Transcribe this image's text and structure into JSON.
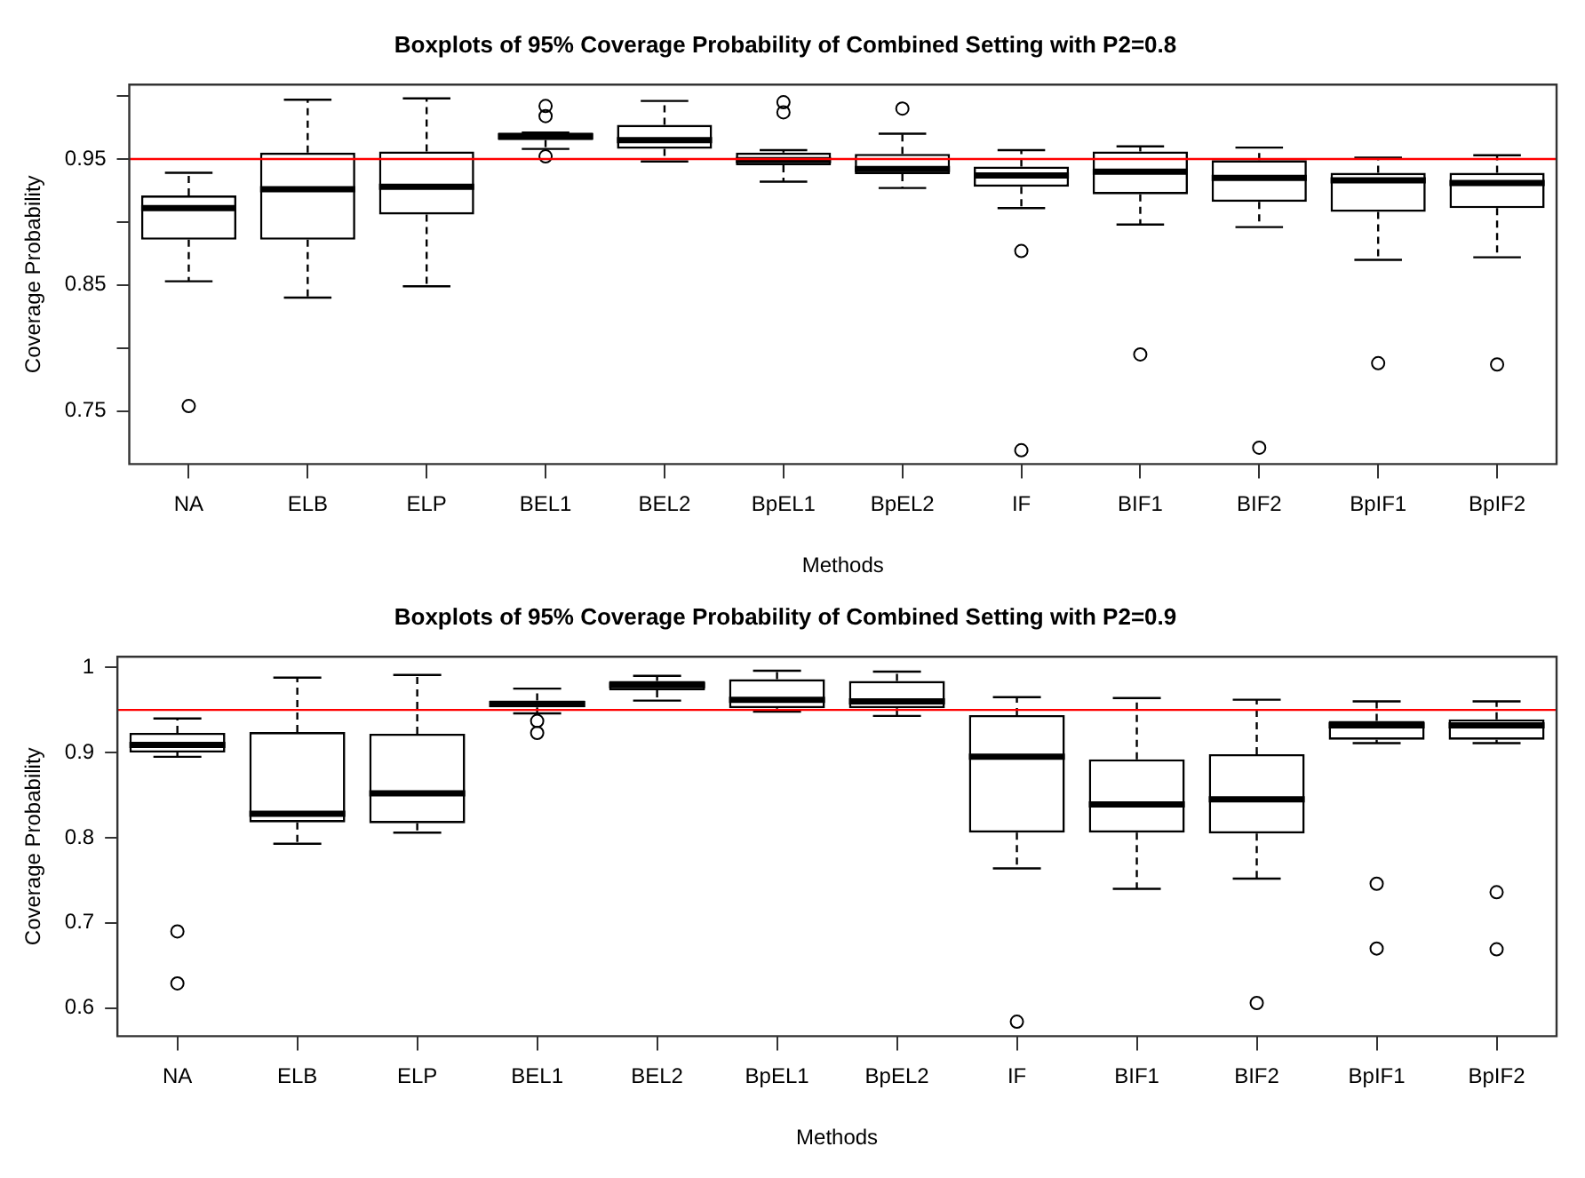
{
  "chart_data": [
    {
      "type": "box",
      "title": "Boxplots of 95% Coverage Probability of Combined Setting with P2=0.8",
      "xlabel": "Methods",
      "ylabel": "Coverage Probability",
      "categories": [
        "NA",
        "ELB",
        "ELP",
        "BEL1",
        "BEL2",
        "BpEL1",
        "BpEL2",
        "IF",
        "BIF1",
        "BIF2",
        "BpIF1",
        "BpIF2"
      ],
      "boxes": [
        {
          "low": 0.853,
          "q1": 0.886,
          "median": 0.911,
          "q3": 0.921,
          "high": 0.939,
          "outliers": [
            0.754
          ]
        },
        {
          "low": 0.84,
          "q1": 0.886,
          "median": 0.926,
          "q3": 0.955,
          "high": 0.997
        },
        {
          "low": 0.849,
          "q1": 0.906,
          "median": 0.928,
          "q3": 0.956,
          "high": 0.998
        },
        {
          "low": 0.958,
          "q1": 0.965,
          "median": 0.968,
          "q3": 0.971,
          "high": 0.971,
          "outliers": [
            0.992,
            0.984,
            0.952
          ]
        },
        {
          "low": 0.948,
          "q1": 0.958,
          "median": 0.965,
          "q3": 0.977,
          "high": 0.996
        },
        {
          "low": 0.932,
          "q1": 0.945,
          "median": 0.949,
          "q3": 0.955,
          "high": 0.957,
          "outliers": [
            0.995,
            0.987
          ]
        },
        {
          "low": 0.927,
          "q1": 0.938,
          "median": 0.942,
          "q3": 0.954,
          "high": 0.97,
          "outliers": [
            0.99
          ]
        },
        {
          "low": 0.911,
          "q1": 0.928,
          "median": 0.937,
          "q3": 0.944,
          "high": 0.957,
          "outliers": [
            0.877,
            0.719
          ]
        },
        {
          "low": 0.898,
          "q1": 0.922,
          "median": 0.94,
          "q3": 0.956,
          "high": 0.96,
          "outliers": [
            0.795
          ]
        },
        {
          "low": 0.896,
          "q1": 0.916,
          "median": 0.935,
          "q3": 0.949,
          "high": 0.959,
          "outliers": [
            0.721
          ]
        },
        {
          "low": 0.87,
          "q1": 0.908,
          "median": 0.933,
          "q3": 0.939,
          "high": 0.951,
          "outliers": [
            0.788
          ]
        },
        {
          "low": 0.872,
          "q1": 0.911,
          "median": 0.931,
          "q3": 0.939,
          "high": 0.953,
          "outliers": [
            0.787
          ]
        }
      ],
      "ylim": [
        0.708,
        1.009
      ],
      "yticks": [
        0.75,
        {
          "value": 0.8,
          "label": null
        },
        0.85,
        {
          "value": 0.9,
          "label": null
        },
        0.95,
        {
          "value": 1.0,
          "label": null
        }
      ],
      "ref_lines": [
        {
          "axis": "y",
          "value": 0.95,
          "color": "#ff0000"
        }
      ],
      "grid": false,
      "legend": false
    },
    {
      "type": "box",
      "title": "Boxplots of 95% Coverage Probability of Combined Setting with P2=0.9",
      "xlabel": "Methods",
      "ylabel": "Coverage Probability",
      "categories": [
        "NA",
        "ELB",
        "ELP",
        "BEL1",
        "BEL2",
        "BpEL1",
        "BpEL2",
        "IF",
        "BIF1",
        "BIF2",
        "BpIF1",
        "BpIF2"
      ],
      "boxes": [
        {
          "low": 0.895,
          "q1": 0.9,
          "median": 0.909,
          "q3": 0.923,
          "high": 0.94,
          "outliers": [
            0.69,
            0.629
          ]
        },
        {
          "low": 0.793,
          "q1": 0.818,
          "median": 0.828,
          "q3": 0.924,
          "high": 0.988
        },
        {
          "low": 0.806,
          "q1": 0.817,
          "median": 0.852,
          "q3": 0.922,
          "high": 0.991
        },
        {
          "low": 0.946,
          "q1": 0.953,
          "median": 0.957,
          "q3": 0.961,
          "high": 0.975,
          "outliers": [
            0.937,
            0.923
          ]
        },
        {
          "low": 0.961,
          "q1": 0.973,
          "median": 0.979,
          "q3": 0.984,
          "high": 0.99
        },
        {
          "low": 0.948,
          "q1": 0.952,
          "median": 0.962,
          "q3": 0.986,
          "high": 0.996
        },
        {
          "low": 0.943,
          "q1": 0.952,
          "median": 0.96,
          "q3": 0.984,
          "high": 0.995
        },
        {
          "low": 0.764,
          "q1": 0.806,
          "median": 0.895,
          "q3": 0.944,
          "high": 0.965,
          "outliers": [
            0.584
          ]
        },
        {
          "low": 0.74,
          "q1": 0.806,
          "median": 0.839,
          "q3": 0.892,
          "high": 0.964
        },
        {
          "low": 0.752,
          "q1": 0.805,
          "median": 0.845,
          "q3": 0.898,
          "high": 0.962,
          "outliers": [
            0.606
          ]
        },
        {
          "low": 0.911,
          "q1": 0.915,
          "median": 0.932,
          "q3": 0.937,
          "high": 0.96,
          "outliers": [
            0.746,
            0.67
          ]
        },
        {
          "low": 0.911,
          "q1": 0.915,
          "median": 0.932,
          "q3": 0.939,
          "high": 0.96,
          "outliers": [
            0.736,
            0.669
          ]
        }
      ],
      "ylim": [
        0.567,
        1.0125
      ],
      "yticks": [
        0.6,
        0.7,
        0.8,
        0.9,
        1.0
      ],
      "ref_lines": [
        {
          "axis": "y",
          "value": 0.95,
          "color": "#ff0000"
        }
      ],
      "grid": false,
      "legend": false
    }
  ]
}
